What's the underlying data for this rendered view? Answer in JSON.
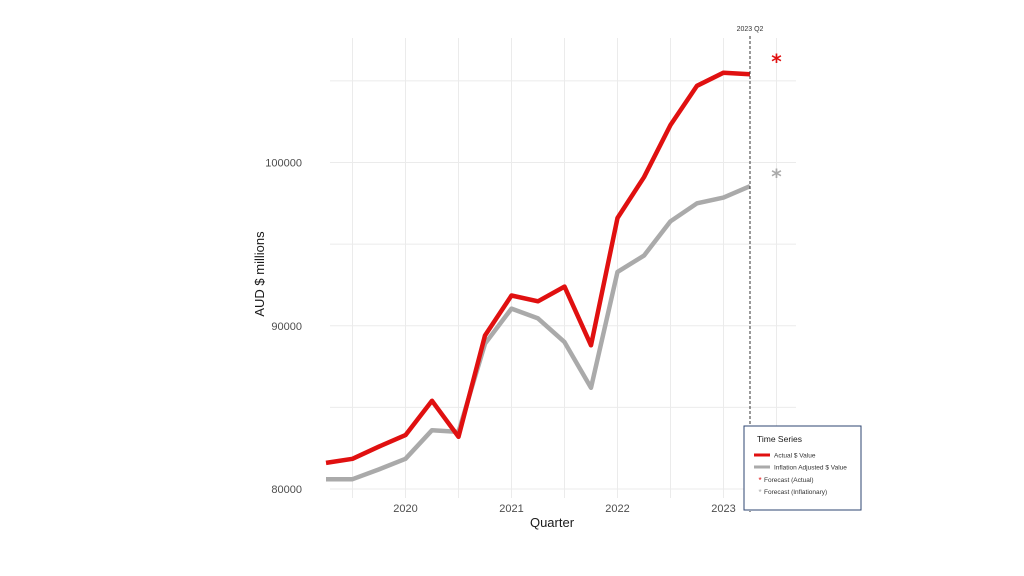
{
  "chart_data": {
    "type": "line",
    "xlabel": "Quarter",
    "ylabel": "AUD $ millions",
    "x_ticks": [
      "2020",
      "2021",
      "2022",
      "2023"
    ],
    "y_ticks": [
      "80000",
      "90000",
      "100000"
    ],
    "ylim": [
      79500,
      108500
    ],
    "quarters": [
      "2019 Q2",
      "2019 Q3",
      "2019 Q4",
      "2020 Q1",
      "2020 Q2",
      "2020 Q3",
      "2020 Q4",
      "2021 Q1",
      "2021 Q2",
      "2021 Q3",
      "2021 Q4",
      "2022 Q1",
      "2022 Q2",
      "2022 Q3",
      "2022 Q4",
      "2023 Q1",
      "2023 Q2"
    ],
    "series": [
      {
        "name": "Actual $ Value",
        "color": "#e01010",
        "values": [
          81600,
          81850,
          82600,
          83300,
          85400,
          83200,
          89400,
          91850,
          91500,
          92400,
          88800,
          96600,
          99100,
          102300,
          104700,
          105500,
          105400
        ]
      },
      {
        "name": "Inflation Adjusted $ Value",
        "color": "#aaaaaa",
        "values": [
          80600,
          80600,
          81200,
          81850,
          83600,
          83500,
          88900,
          91050,
          90450,
          89000,
          86200,
          93300,
          94300,
          96400,
          97500,
          97850,
          98550
        ]
      }
    ],
    "forecast_points": [
      {
        "name": "Forecast  (Actual)",
        "color": "#e01010",
        "x": "2023 Q3",
        "y": 106300
      },
      {
        "name": "Forecast  (Inflationary)",
        "color": "#aaaaaa",
        "x": "2023 Q3",
        "y": 99250
      }
    ],
    "reference_line": {
      "x": "2023 Q2",
      "label": "2023 Q2",
      "style": "dashed"
    },
    "legend": {
      "title": "Time Series",
      "position": "bottom-right",
      "entries": [
        "Actual $ Value",
        "Inflation Adjusted $ Value",
        "Forecast  (Actual)",
        "Forecast  (Inflationary)"
      ]
    },
    "grid": true
  }
}
